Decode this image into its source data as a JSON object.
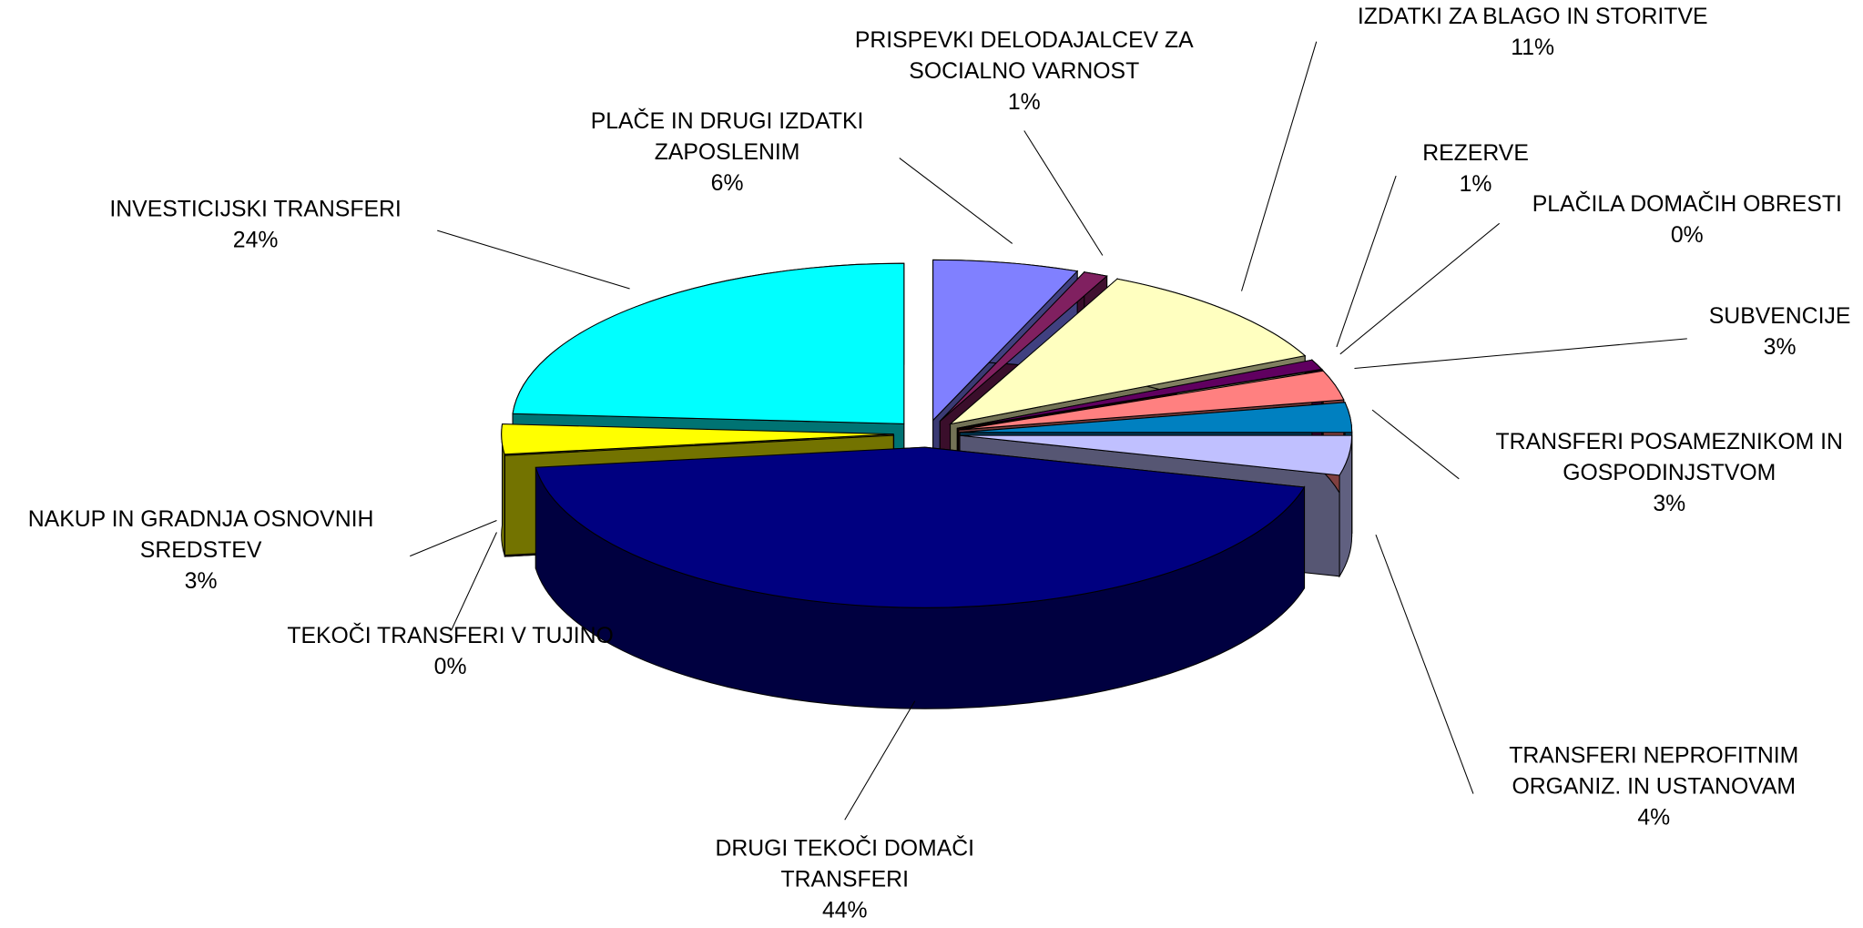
{
  "chart_data": {
    "type": "pie3d",
    "categories": [
      "PLAČE IN DRUGI IZDATKI\nZAPOSLENIM",
      "PRISPEVKI DELODAJALCEV ZA\nSOCIALNO VARNOST",
      "IZDATKI ZA BLAGO IN STORITVE",
      "REZERVE",
      "PLAČILA DOMAČIH OBRESTI",
      "SUBVENCIJE",
      "TRANSFERI POSAMEZNIKOM IN\nGOSPODINJSTVOM",
      "TRANSFERI NEPROFITNIM\nORGANIZ. IN USTANOVAM",
      "DRUGI TEKOČI DOMAČI\nTRANSFERI",
      "TEKOČI TRANSFERI V TUJINO",
      "NAKUP IN GRADNJA OSNOVNIH\nSREDSTEV",
      "INVESTICIJSKI TRANSFERI"
    ],
    "values": [
      6,
      1,
      11,
      1,
      0,
      3,
      3,
      4,
      44,
      0,
      3,
      24
    ],
    "value_labels": [
      "6%",
      "1%",
      "11%",
      "1%",
      "0%",
      "3%",
      "3%",
      "4%",
      "44%",
      "0%",
      "3%",
      "24%"
    ],
    "colors": [
      "#8080ff",
      "#802060",
      "#ffffc0",
      "#600060",
      "#c00000",
      "#ff8080",
      "#0080c0",
      "#c0c0ff",
      "#000080",
      "#800080",
      "#ffff00",
      "#00ffff"
    ]
  }
}
